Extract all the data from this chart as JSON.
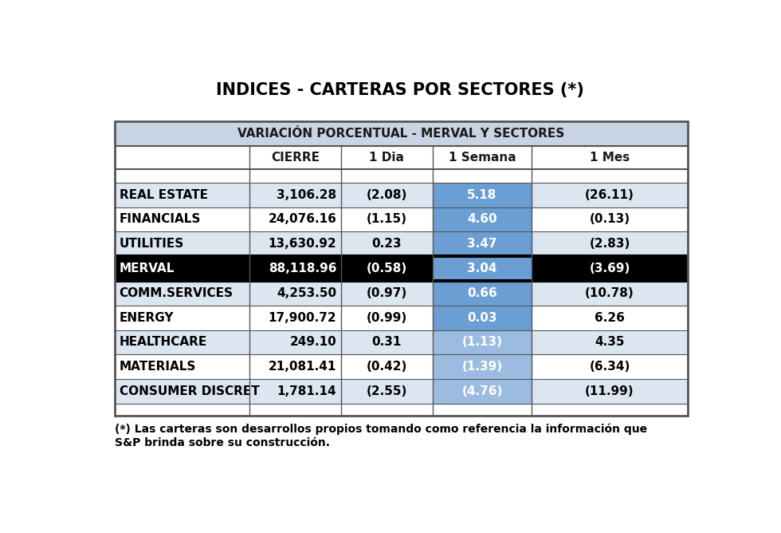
{
  "title": "INDICES - CARTERAS POR SECTORES (*)",
  "subtitle": "VARIACIÓN PORCENTUAL - MERVAL Y SECTORES",
  "columns": [
    "",
    "CIERRE",
    "1 Dia",
    "1 Semana",
    "1 Mes"
  ],
  "rows": [
    {
      "sector": "REAL ESTATE",
      "cierre": "3,106.28",
      "dia": "(2.08)",
      "semana": "5.18",
      "mes": "(26.11)",
      "is_merval": false
    },
    {
      "sector": "FINANCIALS",
      "cierre": "24,076.16",
      "dia": "(1.15)",
      "semana": "4.60",
      "mes": "(0.13)",
      "is_merval": false
    },
    {
      "sector": "UTILITIES",
      "cierre": "13,630.92",
      "dia": "0.23",
      "semana": "3.47",
      "mes": "(2.83)",
      "is_merval": false
    },
    {
      "sector": "MERVAL",
      "cierre": "88,118.96",
      "dia": "(0.58)",
      "semana": "3.04",
      "mes": "(3.69)",
      "is_merval": true
    },
    {
      "sector": "COMM.SERVICES",
      "cierre": "4,253.50",
      "dia": "(0.97)",
      "semana": "0.66",
      "mes": "(10.78)",
      "is_merval": false
    },
    {
      "sector": "ENERGY",
      "cierre": "17,900.72",
      "dia": "(0.99)",
      "semana": "0.03",
      "mes": "6.26",
      "is_merval": false
    },
    {
      "sector": "HEALTHCARE",
      "cierre": "249.10",
      "dia": "0.31",
      "semana": "(1.13)",
      "mes": "4.35",
      "is_merval": false
    },
    {
      "sector": "MATERIALS",
      "cierre": "21,081.41",
      "dia": "(0.42)",
      "semana": "(1.39)",
      "mes": "(6.34)",
      "is_merval": false
    },
    {
      "sector": "CONSUMER DISCRET",
      "cierre": "1,781.14",
      "dia": "(2.55)",
      "semana": "(4.76)",
      "mes": "(11.99)",
      "is_merval": false
    }
  ],
  "merval_row_index": 3,
  "footnote_line1": "(*) Las carteras son desarrollos propios tomando como referencia la información que",
  "footnote_line2": "S&P brinda sobre su construcción.",
  "header_bg": "#c8d4e3",
  "merval_bg": "#000000",
  "merval_text": "#ffffff",
  "blue_cell_dark": "#6b9fd4",
  "blue_cell_light": "#9bbce0",
  "row_bg_light": "#dce6f1",
  "row_bg_white": "#ffffff",
  "border_color": "#555555",
  "text_color": "#000000",
  "title_fontsize": 15,
  "subtitle_fontsize": 11,
  "header_fontsize": 11,
  "data_fontsize": 11
}
